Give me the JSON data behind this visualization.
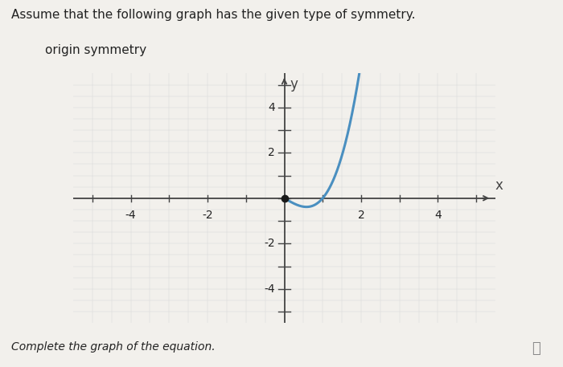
{
  "title_line1": "Assume that the following graph has the given type of symmetry.",
  "title_line2": "origin symmetry",
  "footer_text": "Complete the graph of the equation.",
  "background_color": "#f2f0ec",
  "curve_color": "#4a8fc0",
  "dot_color": "#1a1a1a",
  "axis_color": "#444444",
  "text_color": "#222222",
  "grid_color_major": "#bbbbbb",
  "grid_color_minor": "#d8d8d8",
  "xmin": -5.5,
  "xmax": 5.5,
  "ymin": -5.5,
  "ymax": 5.5,
  "xticks": [
    -4,
    -2,
    2,
    4
  ],
  "yticks": [
    -4,
    -2,
    2,
    4
  ],
  "curve_x_start": 0.0,
  "curve_x_end": 2.35
}
